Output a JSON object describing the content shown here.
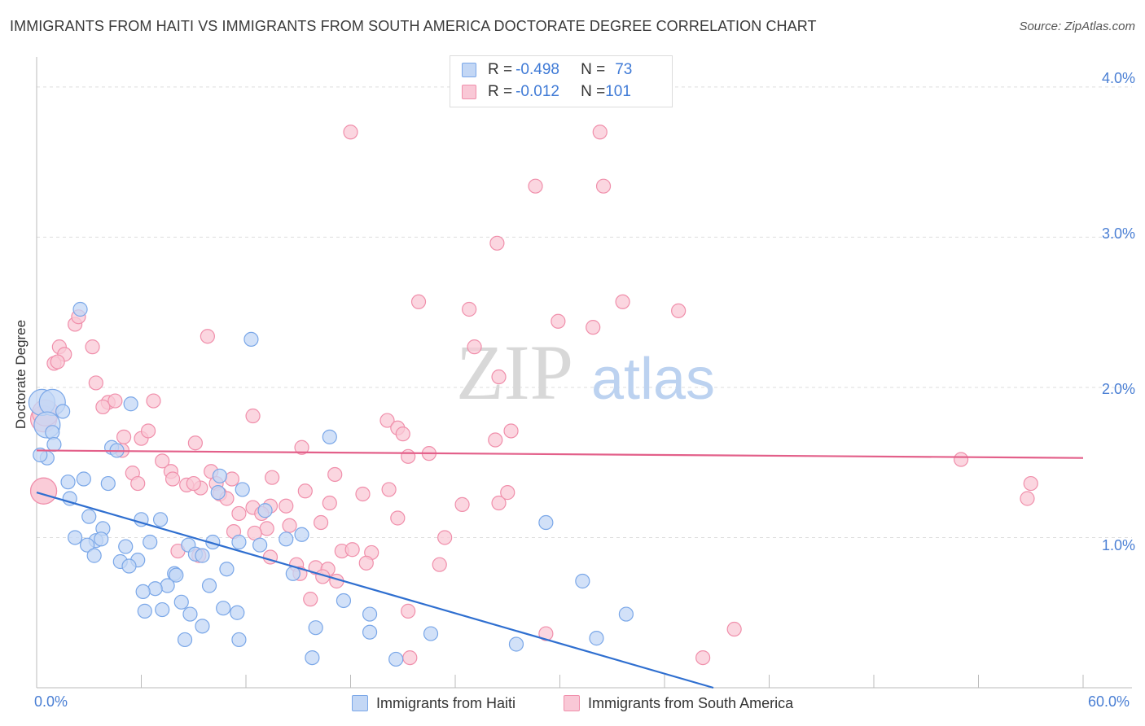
{
  "title": "IMMIGRANTS FROM HAITI VS IMMIGRANTS FROM SOUTH AMERICA DOCTORATE DEGREE CORRELATION CHART",
  "source": "Source: ZipAtlas.com",
  "watermark": {
    "zip": "ZIP",
    "atlas": "atlas"
  },
  "legend_top": [
    {
      "r_label": "R = ",
      "r_value": "-0.498",
      "n_label": "N = ",
      "n_value": "73",
      "color": "#7aa7e8"
    },
    {
      "r_label": "R = ",
      "r_value": "-0.012",
      "n_label": "N = ",
      "n_value": "101",
      "color": "#f08fab"
    }
  ],
  "chart_data": {
    "type": "scatter",
    "title": "IMMIGRANTS FROM HAITI VS IMMIGRANTS FROM SOUTH AMERICA DOCTORATE DEGREE CORRELATION CHART",
    "xlabel": "",
    "ylabel": "Doctorate Degree",
    "xlim": [
      0,
      60
    ],
    "ylim": [
      0,
      4.2
    ],
    "x_tick_labels": [
      "0.0%",
      "60.0%"
    ],
    "y_tick_labels": [
      "1.0%",
      "2.0%",
      "3.0%",
      "4.0%"
    ],
    "y_ticks": [
      1,
      2,
      3,
      4
    ],
    "grid": "horizontal dashed",
    "series": [
      {
        "name": "Immigrants from Haiti",
        "color": "#7aa7e8",
        "trend": {
          "x": [
            0,
            38.8
          ],
          "y": [
            1.3,
            0
          ]
        },
        "points": [
          [
            0.3,
            1.9
          ],
          [
            0.9,
            1.9
          ],
          [
            1.5,
            1.84
          ],
          [
            0.6,
            1.75
          ],
          [
            0.9,
            1.7
          ],
          [
            1.0,
            1.62
          ],
          [
            0.6,
            1.53
          ],
          [
            2.5,
            2.52
          ],
          [
            12.3,
            2.32
          ],
          [
            16.8,
            1.67
          ],
          [
            4.3,
            1.6
          ],
          [
            4.6,
            1.58
          ],
          [
            5.4,
            1.89
          ],
          [
            1.8,
            1.37
          ],
          [
            2.7,
            1.39
          ],
          [
            4.1,
            1.36
          ],
          [
            10.5,
            1.41
          ],
          [
            11.8,
            1.32
          ],
          [
            10.4,
            1.3
          ],
          [
            1.9,
            1.26
          ],
          [
            3.0,
            1.14
          ],
          [
            6.0,
            1.12
          ],
          [
            7.1,
            1.12
          ],
          [
            3.8,
            1.06
          ],
          [
            2.2,
            1.0
          ],
          [
            3.4,
            0.98
          ],
          [
            3.7,
            0.99
          ],
          [
            5.1,
            0.94
          ],
          [
            2.9,
            0.95
          ],
          [
            6.5,
            0.97
          ],
          [
            8.7,
            0.95
          ],
          [
            10.1,
            0.97
          ],
          [
            11.6,
            0.97
          ],
          [
            12.8,
            0.95
          ],
          [
            14.3,
            0.99
          ],
          [
            15.2,
            1.02
          ],
          [
            13.1,
            1.18
          ],
          [
            3.3,
            0.88
          ],
          [
            4.8,
            0.84
          ],
          [
            5.8,
            0.85
          ],
          [
            5.3,
            0.81
          ],
          [
            9.1,
            0.89
          ],
          [
            9.5,
            0.88
          ],
          [
            10.9,
            0.79
          ],
          [
            7.9,
            0.76
          ],
          [
            8.0,
            0.75
          ],
          [
            14.7,
            0.76
          ],
          [
            7.5,
            0.68
          ],
          [
            9.9,
            0.68
          ],
          [
            31.3,
            0.71
          ],
          [
            6.8,
            0.66
          ],
          [
            6.1,
            0.64
          ],
          [
            8.3,
            0.57
          ],
          [
            10.7,
            0.53
          ],
          [
            17.6,
            0.58
          ],
          [
            6.2,
            0.51
          ],
          [
            7.2,
            0.52
          ],
          [
            8.8,
            0.49
          ],
          [
            11.5,
            0.5
          ],
          [
            19.1,
            0.49
          ],
          [
            29.2,
            1.1
          ],
          [
            33.8,
            0.49
          ],
          [
            9.5,
            0.41
          ],
          [
            16.0,
            0.4
          ],
          [
            19.1,
            0.37
          ],
          [
            22.6,
            0.36
          ],
          [
            32.1,
            0.33
          ],
          [
            8.5,
            0.32
          ],
          [
            11.6,
            0.32
          ],
          [
            27.5,
            0.29
          ],
          [
            15.8,
            0.2
          ],
          [
            20.6,
            0.19
          ],
          [
            0.2,
            1.55
          ]
        ]
      },
      {
        "name": "Immigrants from South America",
        "color": "#f08fab",
        "trend": {
          "x": [
            0,
            60
          ],
          "y": [
            1.58,
            1.53
          ]
        },
        "points": [
          [
            18.0,
            3.7
          ],
          [
            32.3,
            3.7
          ],
          [
            28.6,
            3.34
          ],
          [
            32.5,
            3.34
          ],
          [
            26.4,
            2.96
          ],
          [
            21.9,
            2.57
          ],
          [
            24.8,
            2.52
          ],
          [
            33.6,
            2.57
          ],
          [
            36.8,
            2.51
          ],
          [
            29.9,
            2.44
          ],
          [
            31.9,
            2.4
          ],
          [
            9.8,
            2.34
          ],
          [
            2.2,
            2.42
          ],
          [
            2.4,
            2.47
          ],
          [
            1.3,
            2.27
          ],
          [
            3.2,
            2.27
          ],
          [
            1.6,
            2.22
          ],
          [
            1.0,
            2.16
          ],
          [
            25.1,
            2.27
          ],
          [
            26.5,
            2.07
          ],
          [
            3.4,
            2.03
          ],
          [
            4.1,
            1.9
          ],
          [
            3.8,
            1.87
          ],
          [
            4.5,
            1.91
          ],
          [
            6.7,
            1.91
          ],
          [
            0.4,
            1.79
          ],
          [
            12.4,
            1.81
          ],
          [
            20.1,
            1.78
          ],
          [
            20.7,
            1.73
          ],
          [
            27.2,
            1.71
          ],
          [
            26.3,
            1.65
          ],
          [
            21.0,
            1.69
          ],
          [
            5.0,
            1.67
          ],
          [
            6.0,
            1.66
          ],
          [
            6.4,
            1.71
          ],
          [
            9.1,
            1.63
          ],
          [
            4.9,
            1.58
          ],
          [
            15.2,
            1.6
          ],
          [
            22.5,
            1.56
          ],
          [
            21.3,
            1.54
          ],
          [
            53.0,
            1.52
          ],
          [
            7.2,
            1.51
          ],
          [
            5.5,
            1.43
          ],
          [
            7.7,
            1.44
          ],
          [
            10.0,
            1.44
          ],
          [
            7.8,
            1.39
          ],
          [
            8.6,
            1.35
          ],
          [
            9.4,
            1.33
          ],
          [
            9.0,
            1.36
          ],
          [
            10.3,
            1.36
          ],
          [
            11.2,
            1.39
          ],
          [
            13.5,
            1.4
          ],
          [
            17.1,
            1.42
          ],
          [
            0.4,
            1.31
          ],
          [
            5.8,
            1.36
          ],
          [
            15.4,
            1.31
          ],
          [
            24.4,
            1.22
          ],
          [
            26.5,
            1.23
          ],
          [
            27.0,
            1.3
          ],
          [
            18.7,
            1.29
          ],
          [
            20.2,
            1.32
          ],
          [
            16.8,
            1.23
          ],
          [
            10.5,
            1.29
          ],
          [
            10.9,
            1.26
          ],
          [
            12.4,
            1.2
          ],
          [
            13.4,
            1.21
          ],
          [
            14.3,
            1.21
          ],
          [
            12.9,
            1.16
          ],
          [
            11.6,
            1.16
          ],
          [
            20.7,
            1.13
          ],
          [
            16.3,
            1.1
          ],
          [
            13.2,
            1.06
          ],
          [
            14.5,
            1.08
          ],
          [
            12.5,
            1.03
          ],
          [
            11.3,
            1.04
          ],
          [
            23.4,
            1.0
          ],
          [
            17.5,
            0.91
          ],
          [
            18.1,
            0.92
          ],
          [
            19.2,
            0.9
          ],
          [
            13.4,
            0.87
          ],
          [
            9.3,
            0.88
          ],
          [
            8.1,
            0.91
          ],
          [
            14.9,
            0.82
          ],
          [
            16.0,
            0.8
          ],
          [
            16.7,
            0.79
          ],
          [
            18.9,
            0.83
          ],
          [
            23.1,
            0.82
          ],
          [
            15.1,
            0.76
          ],
          [
            16.4,
            0.74
          ],
          [
            17.2,
            0.71
          ],
          [
            15.7,
            0.59
          ],
          [
            21.3,
            0.51
          ],
          [
            29.2,
            0.36
          ],
          [
            38.2,
            0.2
          ],
          [
            21.4,
            0.2
          ],
          [
            40.0,
            0.39
          ],
          [
            57.0,
            1.36
          ],
          [
            56.8,
            1.26
          ],
          [
            0.4,
            1.31
          ],
          [
            0.5,
            1.83
          ],
          [
            1.2,
            2.17
          ]
        ]
      }
    ]
  },
  "bottom_legend": [
    {
      "label": "Immigrants from Haiti",
      "color": "#7aa7e8"
    },
    {
      "label": "Immigrants from South America",
      "color": "#f08fab"
    }
  ]
}
